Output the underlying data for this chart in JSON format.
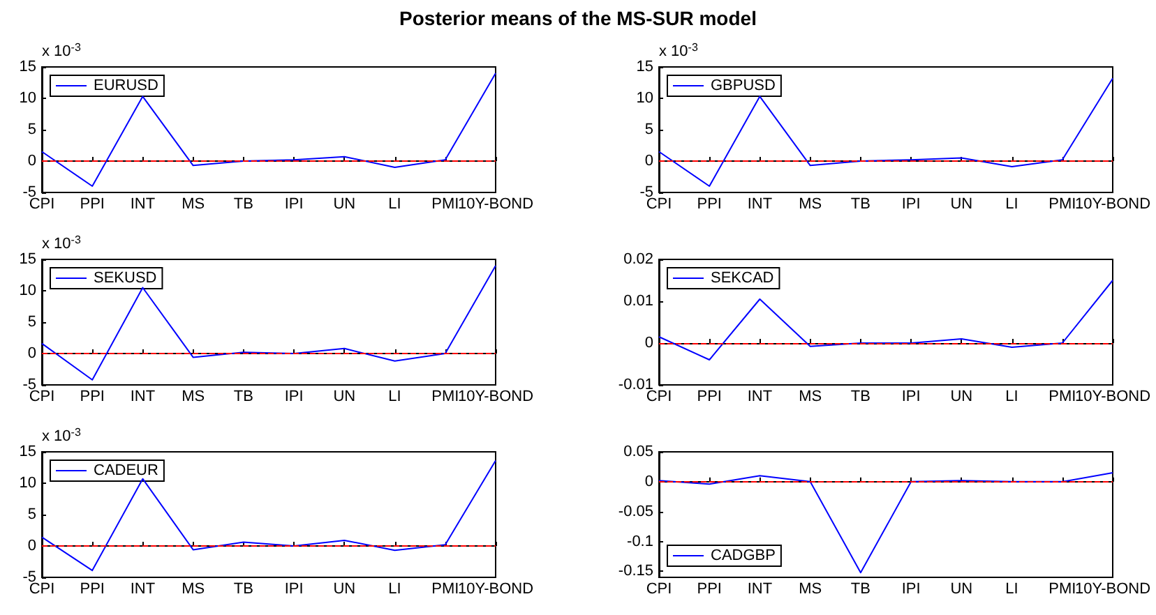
{
  "chart_data": [
    {
      "type": "line",
      "title": "Posterior means of the MS-SUR model",
      "categories": [
        "CPI",
        "PPI",
        "INT",
        "MS",
        "TB",
        "IPI",
        "UN",
        "LI",
        "PMI",
        "10Y-BOND"
      ],
      "legend": "top left",
      "grid": false,
      "annotations": [
        "x 10$^{-3}$"
      ],
      "series": [
        {
          "name": "EURUSD",
          "color": "#0000ff",
          "values": [
            1.5,
            -4,
            10.3,
            -0.7,
            0,
            0.2,
            0.7,
            -1,
            0.2,
            14
          ]
        }
      ],
      "ylim": [
        -5,
        15
      ],
      "yticks": [
        -5,
        0,
        5,
        10,
        15
      ],
      "ref_lines": [
        {
          "axis": "y",
          "value": 0,
          "label": null,
          "color": "#ff0000",
          "line_style": "dashed"
        }
      ]
    },
    {
      "type": "line",
      "categories": [
        "CPI",
        "PPI",
        "INT",
        "MS",
        "TB",
        "IPI",
        "UN",
        "LI",
        "PMI",
        "10Y-BOND"
      ],
      "legend": "top left",
      "grid": false,
      "annotations": [
        "x 10$^{-3}$"
      ],
      "series": [
        {
          "name": "GBPUSD",
          "color": "#0000ff",
          "values": [
            1.5,
            -4,
            10.3,
            -0.7,
            0,
            0.2,
            0.5,
            -0.9,
            0.2,
            13.2
          ]
        }
      ],
      "ylim": [
        -5,
        15
      ],
      "yticks": [
        -5,
        0,
        5,
        10,
        15
      ],
      "ref_lines": [
        {
          "axis": "y",
          "value": 0,
          "label": null,
          "color": "#ff0000",
          "line_style": "dashed"
        }
      ]
    },
    {
      "type": "line",
      "categories": [
        "CPI",
        "PPI",
        "INT",
        "MS",
        "TB",
        "IPI",
        "UN",
        "LI",
        "PMI",
        "10Y-BOND"
      ],
      "legend": "top left",
      "grid": false,
      "annotations": [
        "x 10$^{-3}$"
      ],
      "series": [
        {
          "name": "SEKUSD",
          "color": "#0000ff",
          "values": [
            1.6,
            -4.2,
            10.5,
            -0.6,
            0.2,
            0,
            0.8,
            -1.2,
            0,
            14
          ]
        }
      ],
      "ylim": [
        -5,
        15
      ],
      "yticks": [
        -5,
        0,
        5,
        10,
        15
      ],
      "ref_lines": [
        {
          "axis": "y",
          "value": 0,
          "label": null,
          "color": "#ff0000",
          "line_style": "dashed"
        }
      ]
    },
    {
      "type": "line",
      "categories": [
        "CPI",
        "PPI",
        "INT",
        "MS",
        "TB",
        "IPI",
        "UN",
        "LI",
        "PMI",
        "10Y-BOND"
      ],
      "legend": "top left",
      "grid": false,
      "series": [
        {
          "name": "SEKCAD",
          "color": "#0000ff",
          "values": [
            0.0015,
            -0.004,
            0.0105,
            -0.0008,
            0,
            0,
            0.001,
            -0.001,
            0,
            0.015
          ]
        }
      ],
      "ylim": [
        -0.01,
        0.02
      ],
      "yticks": [
        -0.01,
        0,
        0.01,
        0.02
      ],
      "ref_lines": [
        {
          "axis": "y",
          "value": 0,
          "label": null,
          "color": "#ff0000",
          "line_style": "dashed"
        }
      ]
    },
    {
      "type": "line",
      "categories": [
        "CPI",
        "PPI",
        "INT",
        "MS",
        "TB",
        "IPI",
        "UN",
        "LI",
        "PMI",
        "10Y-BOND"
      ],
      "legend": "top left",
      "grid": false,
      "annotations": [
        "x 10$^{-3}$"
      ],
      "series": [
        {
          "name": "CADEUR",
          "color": "#0000ff",
          "values": [
            1.4,
            -3.9,
            10.7,
            -0.6,
            0.6,
            0,
            0.9,
            -0.7,
            0.2,
            13.6
          ]
        }
      ],
      "ylim": [
        -5,
        15
      ],
      "yticks": [
        -5,
        0,
        5,
        10,
        15
      ],
      "ref_lines": [
        {
          "axis": "y",
          "value": 0,
          "label": null,
          "color": "#ff0000",
          "line_style": "dashed"
        }
      ]
    },
    {
      "type": "line",
      "categories": [
        "CPI",
        "PPI",
        "INT",
        "MS",
        "TB",
        "IPI",
        "UN",
        "LI",
        "PMI",
        "10Y-BOND"
      ],
      "legend": "bottom left",
      "grid": false,
      "series": [
        {
          "name": "CADGBP",
          "color": "#0000ff",
          "values": [
            0.002,
            -0.004,
            0.01,
            0,
            -0.152,
            0,
            0.002,
            0,
            0,
            0.015
          ]
        }
      ],
      "ylim": [
        -0.16,
        0.05
      ],
      "yticks": [
        -0.15,
        -0.1,
        -0.05,
        0,
        0.05
      ],
      "ref_lines": [
        {
          "axis": "y",
          "value": 0,
          "label": null,
          "color": "#ff0000",
          "line_style": "dashed"
        }
      ]
    }
  ]
}
